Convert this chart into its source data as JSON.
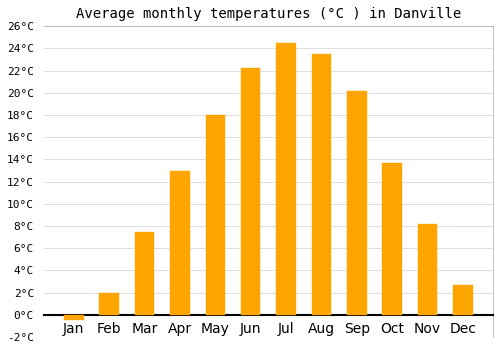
{
  "title": "Average monthly temperatures (°C ) in Danville",
  "months": [
    "Jan",
    "Feb",
    "Mar",
    "Apr",
    "May",
    "Jun",
    "Jul",
    "Aug",
    "Sep",
    "Oct",
    "Nov",
    "Dec"
  ],
  "values": [
    -0.5,
    2.0,
    7.5,
    13.0,
    18.0,
    22.2,
    24.5,
    23.5,
    20.2,
    13.7,
    8.2,
    2.7
  ],
  "bar_color": "#FFA500",
  "bar_edge_color": "#FFA500",
  "ylim": [
    -2,
    26
  ],
  "yticks": [
    -2,
    0,
    2,
    4,
    6,
    8,
    10,
    12,
    14,
    16,
    18,
    20,
    22,
    24,
    26
  ],
  "ylabel_suffix": "°C",
  "bg_color": "#ffffff",
  "grid_color": "#dddddd",
  "title_fontsize": 10,
  "tick_fontsize": 8,
  "bar_width": 0.55
}
